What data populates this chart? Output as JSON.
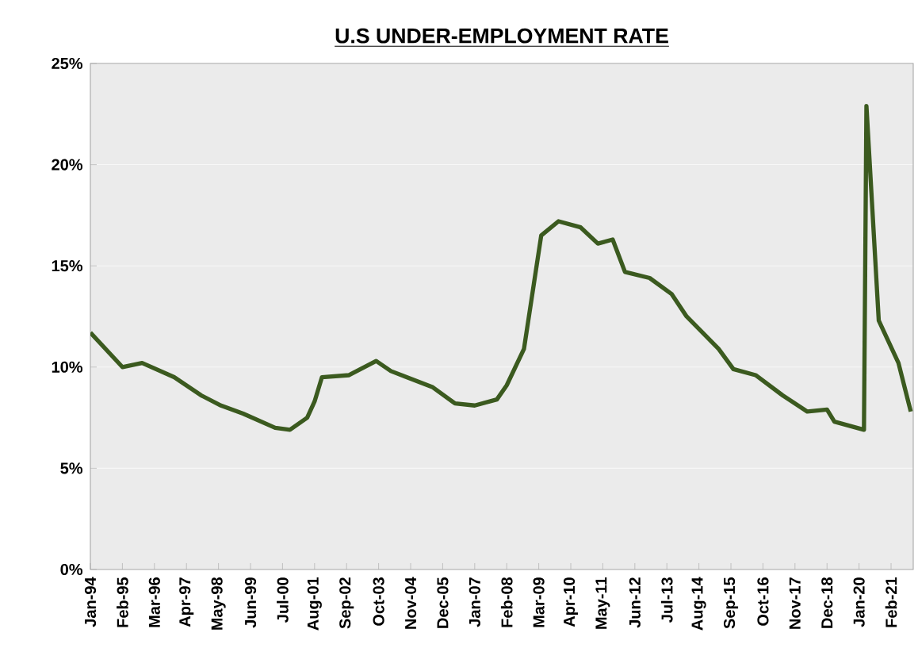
{
  "chart_data": {
    "type": "line",
    "title": "U.S UNDER-EMPLOYMENT RATE",
    "x": [
      "1994-01",
      "1995-02",
      "1995-10",
      "1996-11",
      "1997-10",
      "1998-06",
      "1999-03",
      "2000-04",
      "2000-10",
      "2001-05",
      "2001-08",
      "2001-11",
      "2002-10",
      "2003-09",
      "2004-03",
      "2005-08",
      "2006-05",
      "2007-01",
      "2007-10",
      "2008-02",
      "2008-09",
      "2009-01",
      "2009-04",
      "2009-11",
      "2010-08",
      "2011-03",
      "2011-09",
      "2012-02",
      "2012-12",
      "2013-09",
      "2014-03",
      "2015-04",
      "2015-10",
      "2016-07",
      "2017-06",
      "2018-04",
      "2018-12",
      "2019-03",
      "2020-03",
      "2020-04",
      "2020-09",
      "2021-05",
      "2021-10"
    ],
    "values": [
      11.7,
      10.0,
      10.2,
      9.5,
      8.6,
      8.1,
      7.7,
      7.0,
      6.9,
      7.5,
      8.3,
      9.5,
      9.6,
      10.3,
      9.8,
      9.0,
      8.2,
      8.1,
      8.4,
      9.1,
      10.9,
      14.1,
      16.5,
      17.2,
      16.9,
      16.1,
      16.3,
      14.7,
      14.4,
      13.6,
      12.5,
      10.9,
      9.9,
      9.6,
      8.6,
      7.8,
      7.9,
      7.3,
      6.9,
      22.9,
      12.3,
      10.2,
      7.8
    ],
    "color": "#3b5a1f",
    "xlim": [
      "1994-01",
      "2021-11"
    ],
    "xticks": [
      {
        "value": "1994-01",
        "label": "Jan-94"
      },
      {
        "value": "1995-02",
        "label": "Feb-95"
      },
      {
        "value": "1996-03",
        "label": "Mar-96"
      },
      {
        "value": "1997-04",
        "label": "Apr-97"
      },
      {
        "value": "1998-05",
        "label": "May-98"
      },
      {
        "value": "1999-06",
        "label": "Jun-99"
      },
      {
        "value": "2000-07",
        "label": "Jul-00"
      },
      {
        "value": "2001-08",
        "label": "Aug-01"
      },
      {
        "value": "2002-09",
        "label": "Sep-02"
      },
      {
        "value": "2003-10",
        "label": "Oct-03"
      },
      {
        "value": "2004-11",
        "label": "Nov-04"
      },
      {
        "value": "2005-12",
        "label": "Dec-05"
      },
      {
        "value": "2007-01",
        "label": "Jan-07"
      },
      {
        "value": "2008-02",
        "label": "Feb-08"
      },
      {
        "value": "2009-03",
        "label": "Mar-09"
      },
      {
        "value": "2010-04",
        "label": "Apr-10"
      },
      {
        "value": "2011-05",
        "label": "May-11"
      },
      {
        "value": "2012-06",
        "label": "Jun-12"
      },
      {
        "value": "2013-07",
        "label": "Jul-13"
      },
      {
        "value": "2014-08",
        "label": "Aug-14"
      },
      {
        "value": "2015-09",
        "label": "Sep-15"
      },
      {
        "value": "2016-10",
        "label": "Oct-16"
      },
      {
        "value": "2017-11",
        "label": "Nov-17"
      },
      {
        "value": "2018-12",
        "label": "Dec-18"
      },
      {
        "value": "2020-01",
        "label": "Jan-20"
      },
      {
        "value": "2021-02",
        "label": "Feb-21"
      }
    ],
    "ylim": [
      0,
      25
    ],
    "yticks": [
      {
        "value": 0,
        "label": "0%"
      },
      {
        "value": 5,
        "label": "5%"
      },
      {
        "value": 10,
        "label": "10%"
      },
      {
        "value": 15,
        "label": "15%"
      },
      {
        "value": 20,
        "label": "20%"
      },
      {
        "value": 25,
        "label": "25%"
      }
    ],
    "grid": "y"
  }
}
